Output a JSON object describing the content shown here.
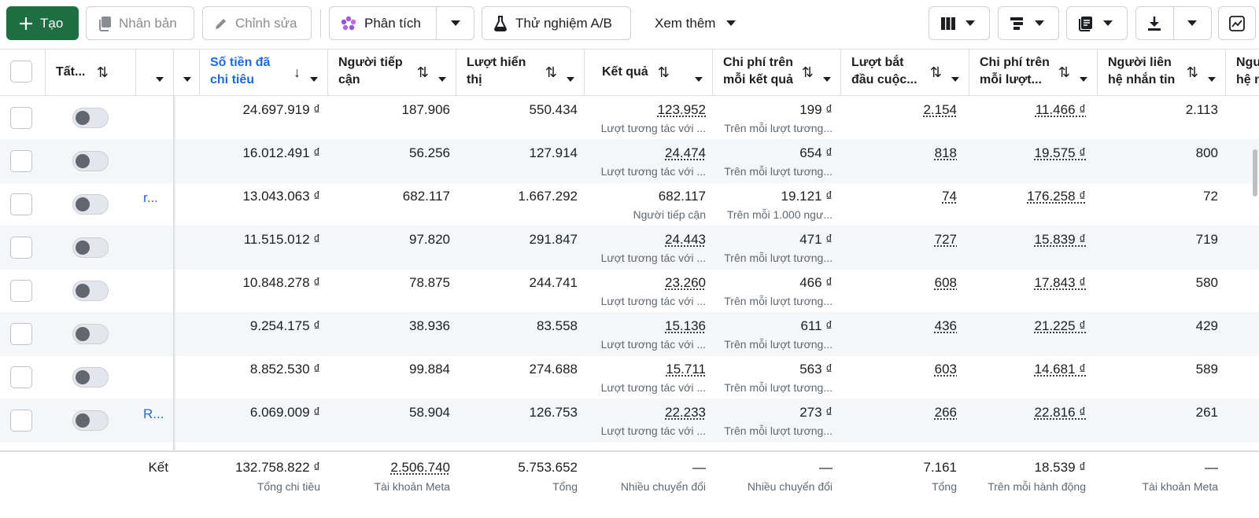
{
  "toolbar": {
    "create": "Tạo",
    "duplicate": "Nhân bản",
    "edit": "Chỉnh sửa",
    "analyze": "Phân tích",
    "ab_test": "Thử nghiệm A/B",
    "more": "Xem thêm"
  },
  "header": {
    "status": "Tất...",
    "spent": [
      "Số tiền đã",
      "chi tiêu"
    ],
    "reach": [
      "Người tiếp",
      "cận"
    ],
    "impressions": [
      "Lượt hiển",
      "thị"
    ],
    "results": "Kết quả",
    "cost_per_result": [
      "Chi phí trên",
      "mỗi kết quả"
    ],
    "conversations": [
      "Lượt bắt",
      "đầu cuộc..."
    ],
    "cost_per_conv": [
      "Chi phí trên",
      "mỗi lượt..."
    ],
    "messaging": [
      "Người liên",
      "hệ nhắn tin"
    ],
    "next": [
      "Ngư",
      "hệ n"
    ]
  },
  "rows": [
    {
      "name": "",
      "spent": "24.697.919 ₫",
      "reach": "187.906",
      "impr": "550.434",
      "res": "123.952",
      "res_sub": "Lượt tương tác với ...",
      "cpr": "199 ₫",
      "cpr_sub": "Trên mỗi lượt tương...",
      "conv": "2.154",
      "cpc": "11.466 ₫",
      "msg": "2.113"
    },
    {
      "name": "",
      "spent": "16.012.491 ₫",
      "reach": "56.256",
      "impr": "127.914",
      "res": "24.474",
      "res_sub": "Lượt tương tác với ...",
      "cpr": "654 ₫",
      "cpr_sub": "Trên mỗi lượt tương...",
      "conv": "818",
      "cpc": "19.575 ₫",
      "msg": "800"
    },
    {
      "name": "r...",
      "spent": "13.043.063 ₫",
      "reach": "682.117",
      "impr": "1.667.292",
      "res": "682.117",
      "res_sub": "Người tiếp cận",
      "cpr": "19.121 ₫",
      "cpr_sub": "Trên mỗi 1.000 ngư...",
      "conv": "74",
      "cpc": "176.258 ₫",
      "msg": "72"
    },
    {
      "name": "",
      "spent": "11.515.012 ₫",
      "reach": "97.820",
      "impr": "291.847",
      "res": "24.443",
      "res_sub": "Lượt tương tác với ...",
      "cpr": "471 ₫",
      "cpr_sub": "Trên mỗi lượt tương...",
      "conv": "727",
      "cpc": "15.839 ₫",
      "msg": "719"
    },
    {
      "name": "",
      "spent": "10.848.278 ₫",
      "reach": "78.875",
      "impr": "244.741",
      "res": "23.260",
      "res_sub": "Lượt tương tác với ...",
      "cpr": "466 ₫",
      "cpr_sub": "Trên mỗi lượt tương...",
      "conv": "608",
      "cpc": "17.843 ₫",
      "msg": "580"
    },
    {
      "name": "",
      "spent": "9.254.175 ₫",
      "reach": "38.936",
      "impr": "83.558",
      "res": "15.136",
      "res_sub": "Lượt tương tác với ...",
      "cpr": "611 ₫",
      "cpr_sub": "Trên mỗi lượt tương...",
      "conv": "436",
      "cpc": "21.225 ₫",
      "msg": "429"
    },
    {
      "name": "",
      "spent": "8.852.530 ₫",
      "reach": "99.884",
      "impr": "274.688",
      "res": "15.711",
      "res_sub": "Lượt tương tác với ...",
      "cpr": "563 ₫",
      "cpr_sub": "Trên mỗi lượt tương...",
      "conv": "603",
      "cpc": "14.681 ₫",
      "msg": "589"
    },
    {
      "name": "R...",
      "spent": "6.069.009 ₫",
      "reach": "58.904",
      "impr": "126.753",
      "res": "22.233",
      "res_sub": "Lượt tương tác với ...",
      "cpr": "273 ₫",
      "cpr_sub": "Trên mỗi lượt tương...",
      "conv": "266",
      "cpc": "22.816 ₫",
      "msg": "261"
    }
  ],
  "footer": {
    "label": "Kết",
    "spent": "132.758.822 ₫",
    "spent_sub": "Tổng chi tiêu",
    "reach": "2.506.740",
    "reach_sub": "Tài khoản Meta",
    "impr": "5.753.652",
    "impr_sub": "Tổng",
    "res": "—",
    "res_sub": "Nhiều chuyển đổi",
    "cpr": "—",
    "cpr_sub": "Nhiều chuyển đổi",
    "conv": "7.161",
    "conv_sub": "Tổng",
    "cpc": "18.539 ₫",
    "cpc_sub": "Trên mỗi hành động",
    "msg": "—",
    "msg_sub": "Tài khoản Meta"
  },
  "icons": {
    "create": "plus-icon",
    "duplicate": "copy-icon",
    "edit": "pencil-icon",
    "analyze": "sparkle-icon",
    "ab": "flask-icon",
    "columns": "columns-icon",
    "breakdown": "breakdown-icon",
    "reports": "reports-icon",
    "export": "download-icon",
    "chart": "chart-icon"
  },
  "colors": {
    "primary": "#1f6e43",
    "link": "#1d6bd8",
    "alt_row": "#f5f6f7"
  }
}
